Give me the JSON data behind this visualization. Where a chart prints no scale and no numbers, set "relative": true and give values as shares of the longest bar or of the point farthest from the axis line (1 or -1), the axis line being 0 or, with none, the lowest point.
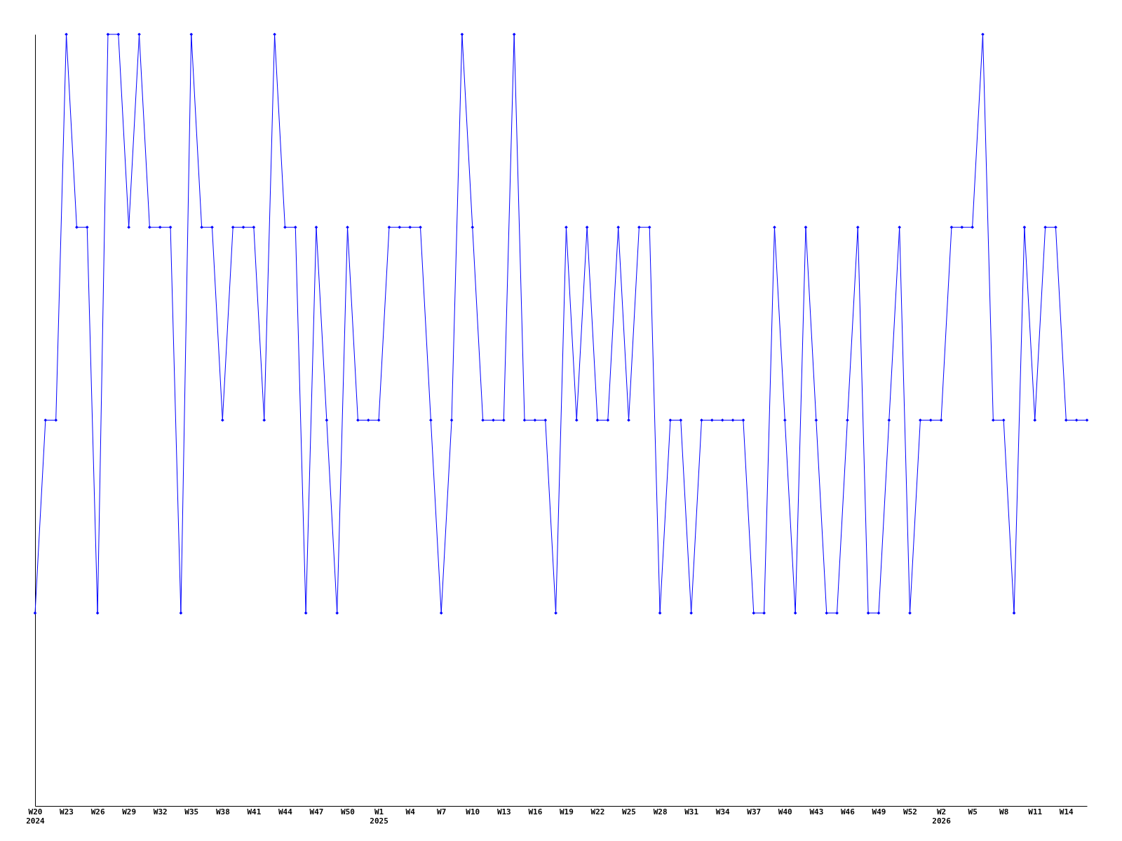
{
  "chart_data": {
    "type": "line",
    "relative": true,
    "marker": "diamond",
    "line_style": "solid",
    "grid": false,
    "categories": [
      "W20\n2024",
      null,
      null,
      "W23",
      null,
      null,
      "W26",
      null,
      null,
      "W29",
      null,
      null,
      "W32",
      null,
      null,
      "W35",
      null,
      null,
      "W38",
      null,
      null,
      "W41",
      null,
      null,
      "W44",
      null,
      null,
      "W47",
      null,
      null,
      "W50",
      null,
      null,
      "W1\n2025",
      null,
      null,
      "W4",
      null,
      null,
      "W7",
      null,
      null,
      "W10",
      null,
      null,
      "W13",
      null,
      null,
      "W16",
      null,
      null,
      "W19",
      null,
      null,
      "W22",
      null,
      null,
      "W25",
      null,
      null,
      "W28",
      null,
      null,
      "W31",
      null,
      null,
      "W34",
      null,
      null,
      "W37",
      null,
      null,
      "W40",
      null,
      null,
      "W43",
      null,
      null,
      "W46",
      null,
      null,
      "W49",
      null,
      null,
      "W52",
      null,
      null,
      "W2\n2026",
      null,
      null,
      "W5",
      null,
      null,
      "W8",
      null,
      null,
      "W11",
      null,
      null,
      "W14",
      null,
      null
    ],
    "series": [
      {
        "color": "#0000ff",
        "values": [
          0.25,
          0.5,
          0.5,
          1,
          0.75,
          0.75,
          0.25,
          1,
          1,
          0.75,
          1,
          0.75,
          0.75,
          0.75,
          0.25,
          1,
          0.75,
          0.75,
          0.5,
          0.75,
          0.75,
          0.75,
          0.5,
          1,
          0.75,
          0.75,
          0.25,
          0.75,
          0.5,
          0.25,
          0.75,
          0.5,
          0.5,
          0.5,
          0.75,
          0.75,
          0.75,
          0.75,
          0.5,
          0.25,
          0.5,
          1,
          0.75,
          0.5,
          0.5,
          0.5,
          1,
          0.5,
          0.5,
          0.5,
          0.25,
          0.75,
          0.5,
          0.75,
          0.5,
          0.5,
          0.75,
          0.5,
          0.75,
          0.75,
          0.25,
          0.5,
          0.5,
          0.25,
          0.5,
          0.5,
          0.5,
          0.5,
          0.5,
          0.25,
          0.25,
          0.75,
          0.5,
          0.25,
          0.75,
          0.5,
          0.25,
          0.25,
          0.5,
          0.75,
          0.25,
          0.25,
          0.5,
          0.75,
          0.25,
          0.5,
          0.5,
          0.5,
          0.75,
          0.75,
          0.75,
          1,
          0.5,
          0.5,
          0.25,
          0.75,
          0.5,
          0.75,
          0.75,
          0.5,
          0.5,
          0.5
        ]
      }
    ]
  }
}
